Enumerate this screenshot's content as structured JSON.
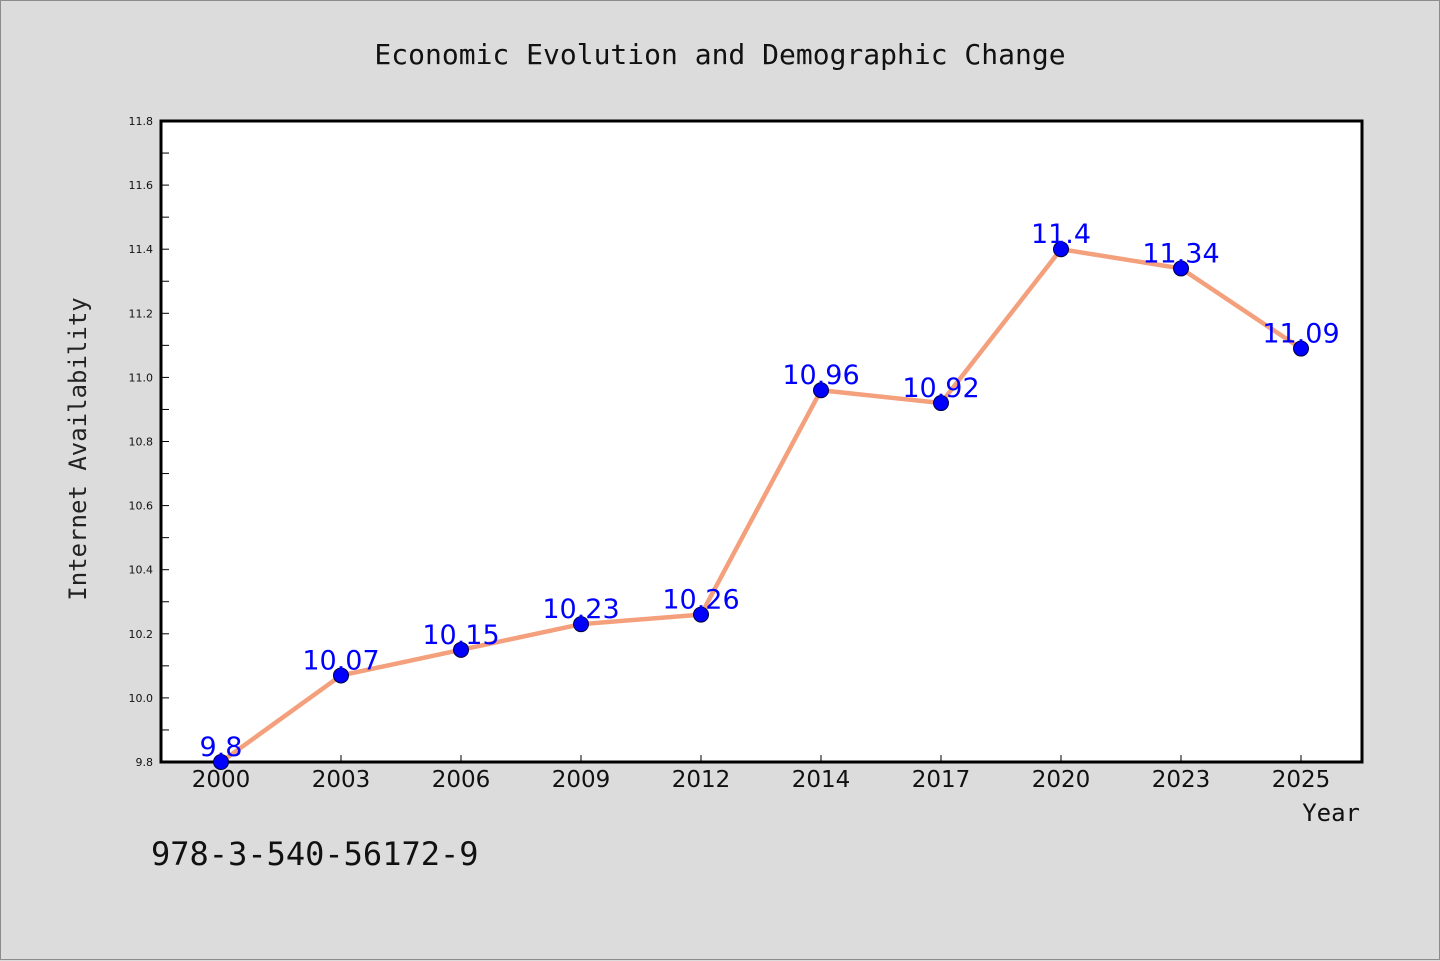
{
  "chart_data": {
    "type": "line",
    "title": "Economic Evolution and Demographic Change",
    "xlabel": "Year",
    "ylabel": "Internet Availability",
    "categories": [
      "2000",
      "2003",
      "2006",
      "2009",
      "2012",
      "2014",
      "2017",
      "2020",
      "2023",
      "2025"
    ],
    "series": [
      {
        "values": [
          9.8,
          10.07,
          10.15,
          10.23,
          10.26,
          10.96,
          10.92,
          11.4,
          11.34,
          11.09
        ]
      }
    ],
    "data_labels": [
      "9.8",
      "10.07",
      "10.15",
      "10.23",
      "10.26",
      "10.96",
      "10.92",
      "11.4",
      "11.34",
      "11.09"
    ],
    "ylim": [
      9.8,
      11.8
    ],
    "yticks": [
      "9.8",
      "10.0",
      "10.2",
      "10.4",
      "10.6",
      "10.8",
      "11.0",
      "11.2",
      "11.4",
      "11.6",
      "11.8"
    ],
    "grid": false,
    "legend": "none",
    "colors": {
      "line": "#f4a07c",
      "marker": "#0000ff",
      "marker_edge": "#000040",
      "data_label": "#0000ff",
      "background": "#dcdcdc",
      "plot_area": "#ffffff"
    }
  },
  "footer": {
    "isbn": "978-3-540-56172-9"
  }
}
